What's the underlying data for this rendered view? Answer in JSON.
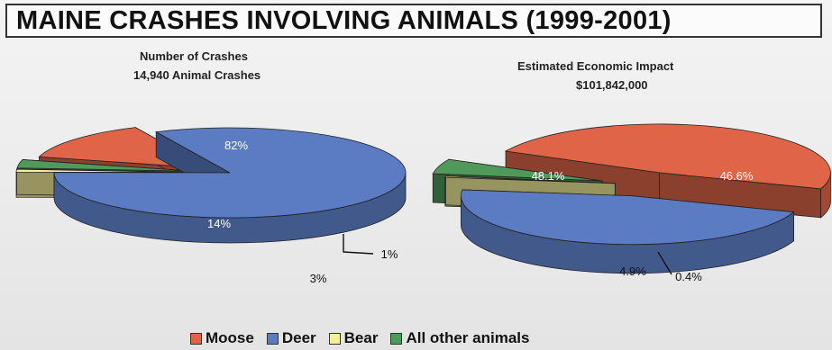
{
  "title": "MAINE CRASHES INVOLVING ANIMALS (1999-2001)",
  "legend": [
    {
      "label": "Moose",
      "color": "#e06548"
    },
    {
      "label": "Deer",
      "color": "#5b7bc3"
    },
    {
      "label": "Bear",
      "color": "#f3ef9a"
    },
    {
      "label": "All other animals",
      "color": "#4f9a5a"
    }
  ],
  "chart_data": [
    {
      "type": "pie",
      "title": "Number of Crashes",
      "subtitle": "14,940 Animal Crashes",
      "categories": [
        "Moose",
        "Deer",
        "Bear",
        "All other animals"
      ],
      "values": [
        14,
        82,
        1,
        3
      ],
      "labels": [
        "14%",
        "82%",
        "1%",
        "3%"
      ],
      "legend": "bottom"
    },
    {
      "type": "pie",
      "title": "Estimated Economic Impact",
      "subtitle": "$101,842,000",
      "categories": [
        "Moose",
        "Deer",
        "Bear",
        "All other animals"
      ],
      "values": [
        48.1,
        46.6,
        0.4,
        4.9
      ],
      "labels": [
        "48.1%",
        "46.6%",
        "0.4%",
        "4.9%"
      ],
      "legend": "bottom"
    }
  ]
}
